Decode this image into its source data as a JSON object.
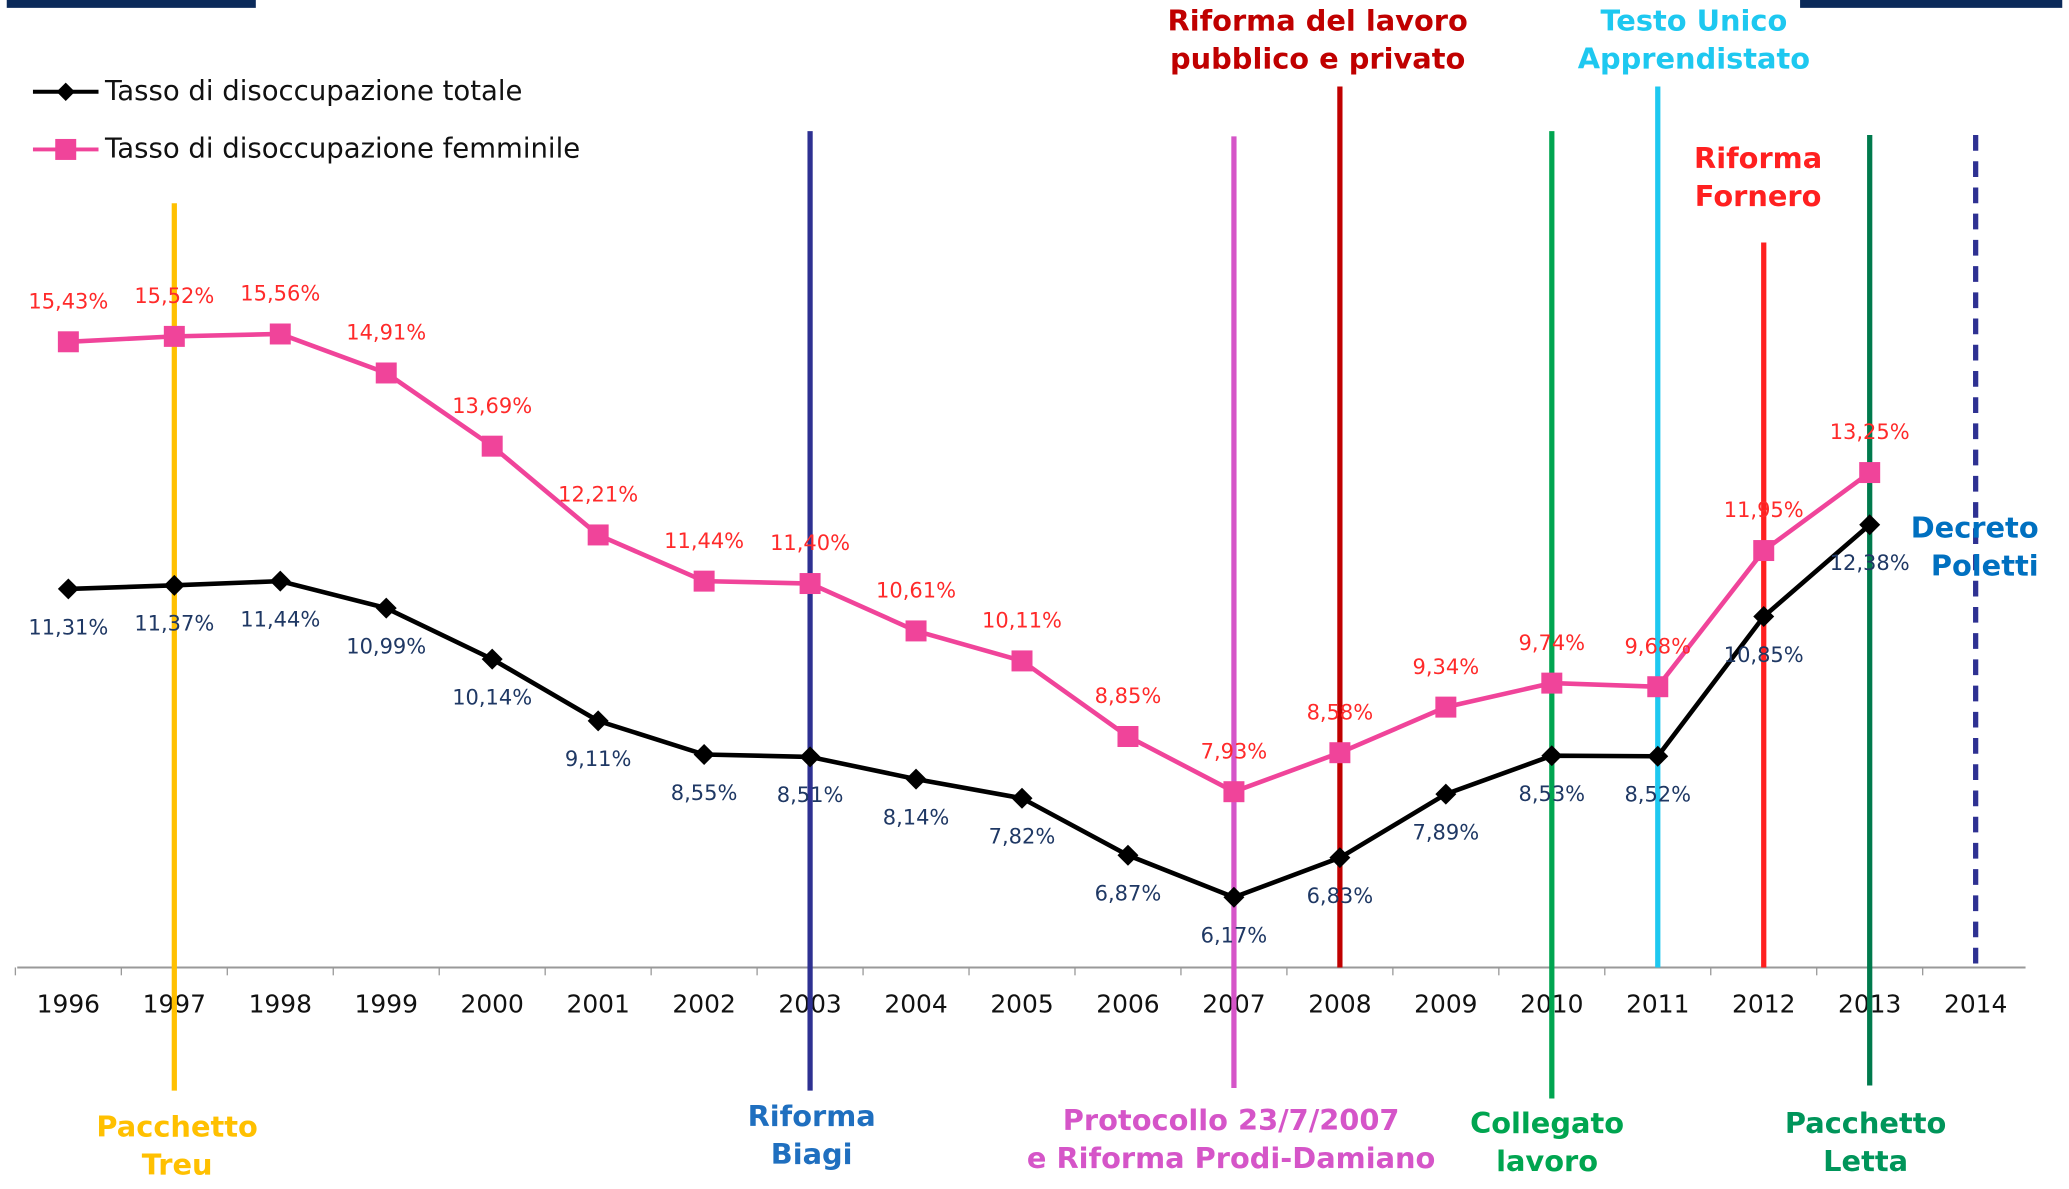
{
  "chart_data": {
    "type": "line",
    "categories": [
      "1996",
      "1997",
      "1998",
      "1999",
      "2000",
      "2001",
      "2002",
      "2003",
      "2004",
      "2005",
      "2006",
      "2007",
      "2008",
      "2009",
      "2010",
      "2011",
      "2012",
      "2013",
      "2014"
    ],
    "ylim": [
      5,
      17.5
    ],
    "series": [
      {
        "name": "Tasso di disoccupazione totale",
        "color": "#000000",
        "label_color": "#1f3864",
        "marker": "diamond",
        "values": [
          11.31,
          11.37,
          11.44,
          10.99,
          10.14,
          9.11,
          8.55,
          8.51,
          8.14,
          7.82,
          6.87,
          6.17,
          6.83,
          7.89,
          8.53,
          8.52,
          10.85,
          12.38,
          null
        ],
        "value_labels": [
          "11,31%",
          "11,37%",
          "11,44%",
          "10,99%",
          "10,14%",
          "9,11%",
          "8,55%",
          "8,51%",
          "8,14%",
          "7,82%",
          "6,87%",
          "6,17%",
          "6,83%",
          "7,89%",
          "8,53%",
          "8,52%",
          "10,85%",
          "12,38%",
          null
        ]
      },
      {
        "name": "Tasso di disoccupazione femminile",
        "color": "#f0449a",
        "label_color": "#ff2a2a",
        "marker": "square",
        "values": [
          15.43,
          15.52,
          15.56,
          14.91,
          13.69,
          12.21,
          11.44,
          11.4,
          10.61,
          10.11,
          8.85,
          7.93,
          8.58,
          9.34,
          9.74,
          9.68,
          11.95,
          13.25,
          null
        ],
        "value_labels": [
          "15,43%",
          "15,52%",
          "15,56%",
          "14,91%",
          "13,69%",
          "12,21%",
          "11,44%",
          "11,40%",
          "10,61%",
          "10,11%",
          "8,85%",
          "7,93%",
          "8,58%",
          "9,34%",
          "9,74%",
          "9,68%",
          "11,95%",
          "13,25%",
          null
        ]
      }
    ],
    "annotations": [
      {
        "lines": [
          "Pacchetto",
          "Treu"
        ],
        "color": "#ffc000",
        "text_color": "#ffc000"
      },
      {
        "lines": [
          "Riforma",
          "Biagi"
        ],
        "color": "#2e3192",
        "text_color": "#1f6fbf"
      },
      {
        "lines": [
          "Protocollo 23/7/2007",
          "e Riforma Prodi-Damiano"
        ],
        "color": "#d555c8",
        "text_color": "#d555c8"
      },
      {
        "lines": [
          "Riforma del lavoro",
          "pubblico e privato"
        ],
        "color": "#c00000",
        "text_color": "#c00000"
      },
      {
        "lines": [
          "Collegato",
          "lavoro"
        ],
        "color": "#00a550",
        "text_color": "#00a550"
      },
      {
        "lines": [
          "Testo Unico",
          "Apprendistato"
        ],
        "color": "#1ec8f0",
        "text_color": "#1ec8f0"
      },
      {
        "lines": [
          "Riforma",
          "Fornero"
        ],
        "color": "#ff2020",
        "text_color": "#ff2020"
      },
      {
        "lines": [
          "Pacchetto",
          "Letta"
        ],
        "color": "#007a4d",
        "text_color": "#00955a"
      },
      {
        "lines": [
          "Decreto",
          "Poletti"
        ],
        "color": "#2e3192",
        "text_color": "#0070c0"
      }
    ]
  }
}
